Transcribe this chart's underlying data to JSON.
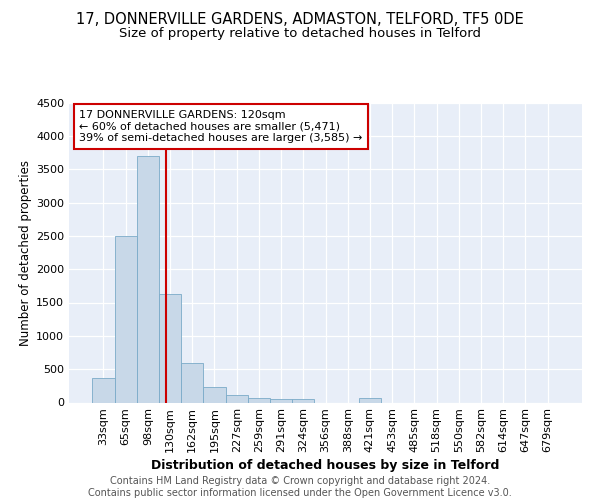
{
  "title": "17, DONNERVILLE GARDENS, ADMASTON, TELFORD, TF5 0DE",
  "subtitle": "Size of property relative to detached houses in Telford",
  "xlabel": "Distribution of detached houses by size in Telford",
  "ylabel": "Number of detached properties",
  "categories": [
    "33sqm",
    "65sqm",
    "98sqm",
    "130sqm",
    "162sqm",
    "195sqm",
    "227sqm",
    "259sqm",
    "291sqm",
    "324sqm",
    "356sqm",
    "388sqm",
    "421sqm",
    "453sqm",
    "485sqm",
    "518sqm",
    "550sqm",
    "582sqm",
    "614sqm",
    "647sqm",
    "679sqm"
  ],
  "values": [
    375,
    2500,
    3700,
    1625,
    600,
    240,
    110,
    65,
    55,
    50,
    0,
    0,
    65,
    0,
    0,
    0,
    0,
    0,
    0,
    0,
    0
  ],
  "bar_color": "#c8d8e8",
  "bar_edge_color": "#7aaac8",
  "vline_x": 2.82,
  "vline_color": "#cc0000",
  "annotation_line1": "17 DONNERVILLE GARDENS: 120sqm",
  "annotation_line2": "← 60% of detached houses are smaller (5,471)",
  "annotation_line3": "39% of semi-detached houses are larger (3,585) →",
  "annotation_box_color": "#ffffff",
  "annotation_box_edge": "#cc0000",
  "ylim": [
    0,
    4500
  ],
  "yticks": [
    0,
    500,
    1000,
    1500,
    2000,
    2500,
    3000,
    3500,
    4000,
    4500
  ],
  "background_color": "#e8eef8",
  "grid_color": "#ffffff",
  "footer_text": "Contains HM Land Registry data © Crown copyright and database right 2024.\nContains public sector information licensed under the Open Government Licence v3.0.",
  "title_fontsize": 10.5,
  "subtitle_fontsize": 9.5,
  "xlabel_fontsize": 9,
  "ylabel_fontsize": 8.5,
  "tick_fontsize": 8,
  "annot_fontsize": 8,
  "footer_fontsize": 7
}
